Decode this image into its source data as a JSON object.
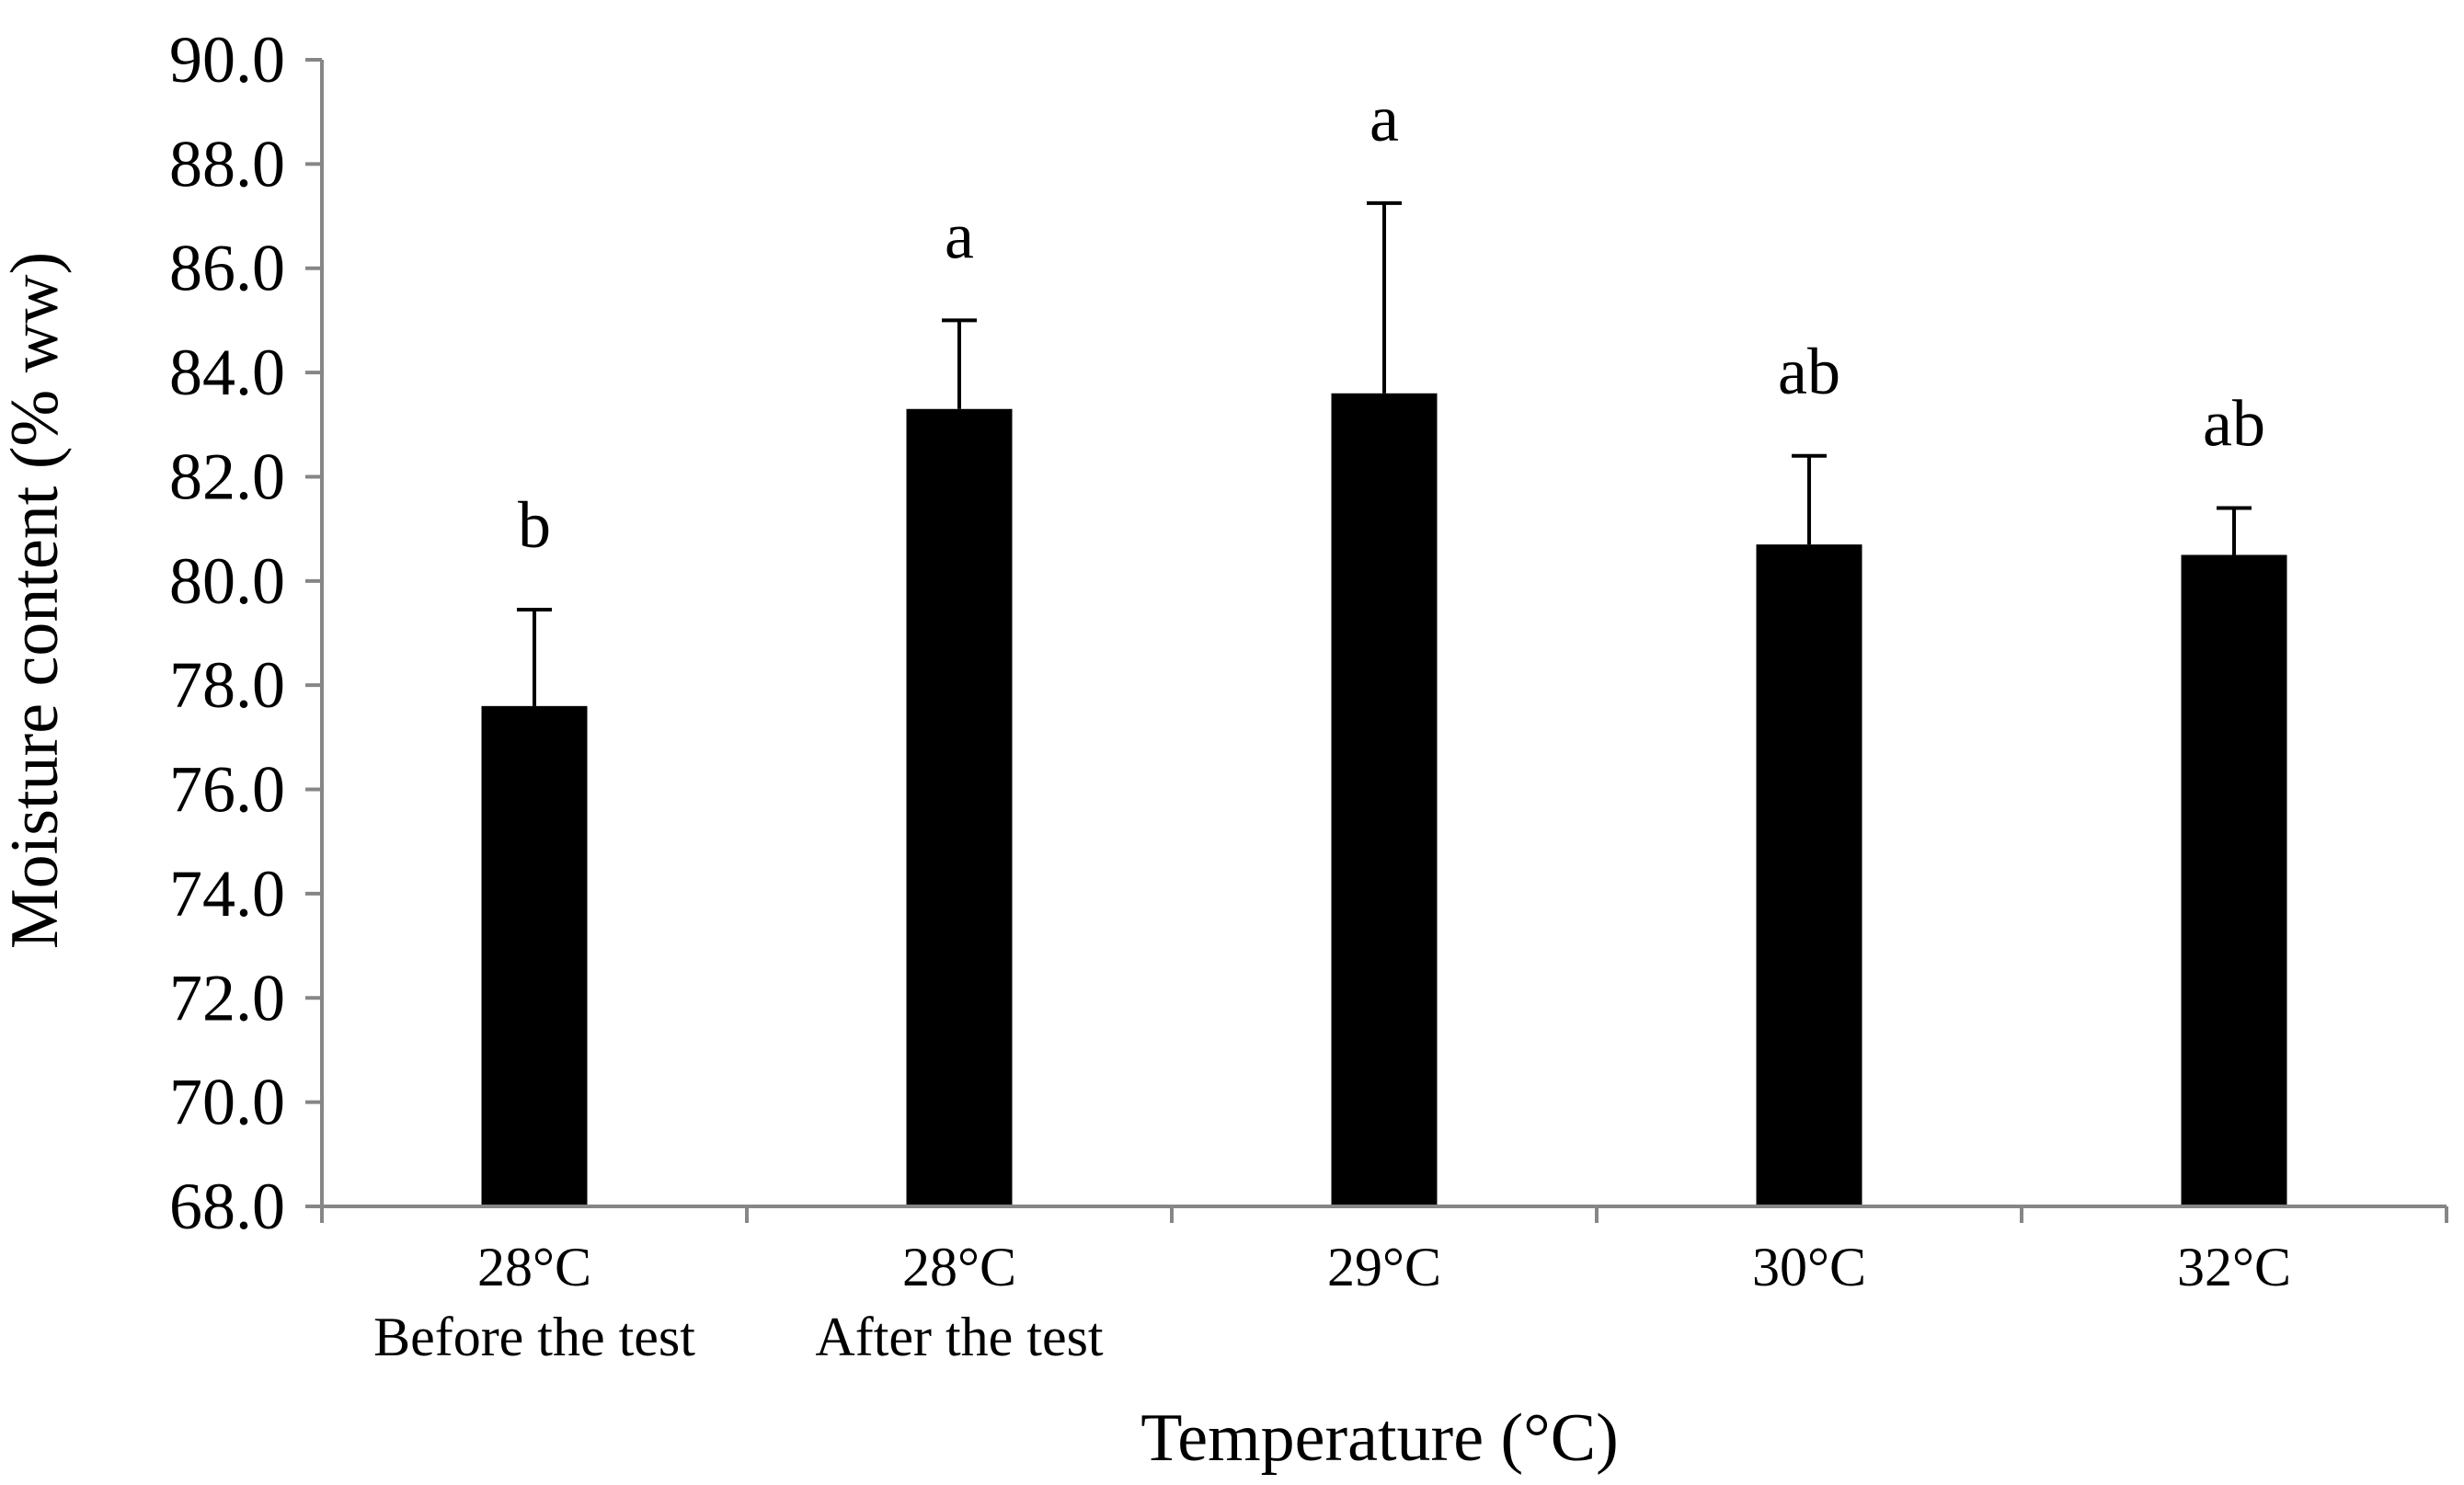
{
  "chart_data": {
    "type": "bar",
    "title": "",
    "xlabel": "Temperature (°C)",
    "ylabel": "Moisture content (% ww)",
    "ylim": [
      68.0,
      90.0
    ],
    "yticks": [
      "68.0",
      "70.0",
      "72.0",
      "74.0",
      "76.0",
      "78.0",
      "80.0",
      "82.0",
      "84.0",
      "86.0",
      "88.0",
      "90.0"
    ],
    "grid": false,
    "legend": "none",
    "bar_color": "#000000",
    "categories": [
      {
        "line1": "28°C",
        "line2": "Before the test"
      },
      {
        "line1": "28°C",
        "line2": "After the test"
      },
      {
        "line1": "29°C",
        "line2": ""
      },
      {
        "line1": "30°C",
        "line2": ""
      },
      {
        "line1": "32°C",
        "line2": ""
      }
    ],
    "values": [
      77.6,
      83.3,
      83.6,
      80.7,
      80.5
    ],
    "error_upper": [
      1.85,
      1.7,
      3.65,
      1.7,
      0.9
    ],
    "significance_labels": [
      "b",
      "a",
      "a",
      "ab",
      "ab"
    ]
  }
}
